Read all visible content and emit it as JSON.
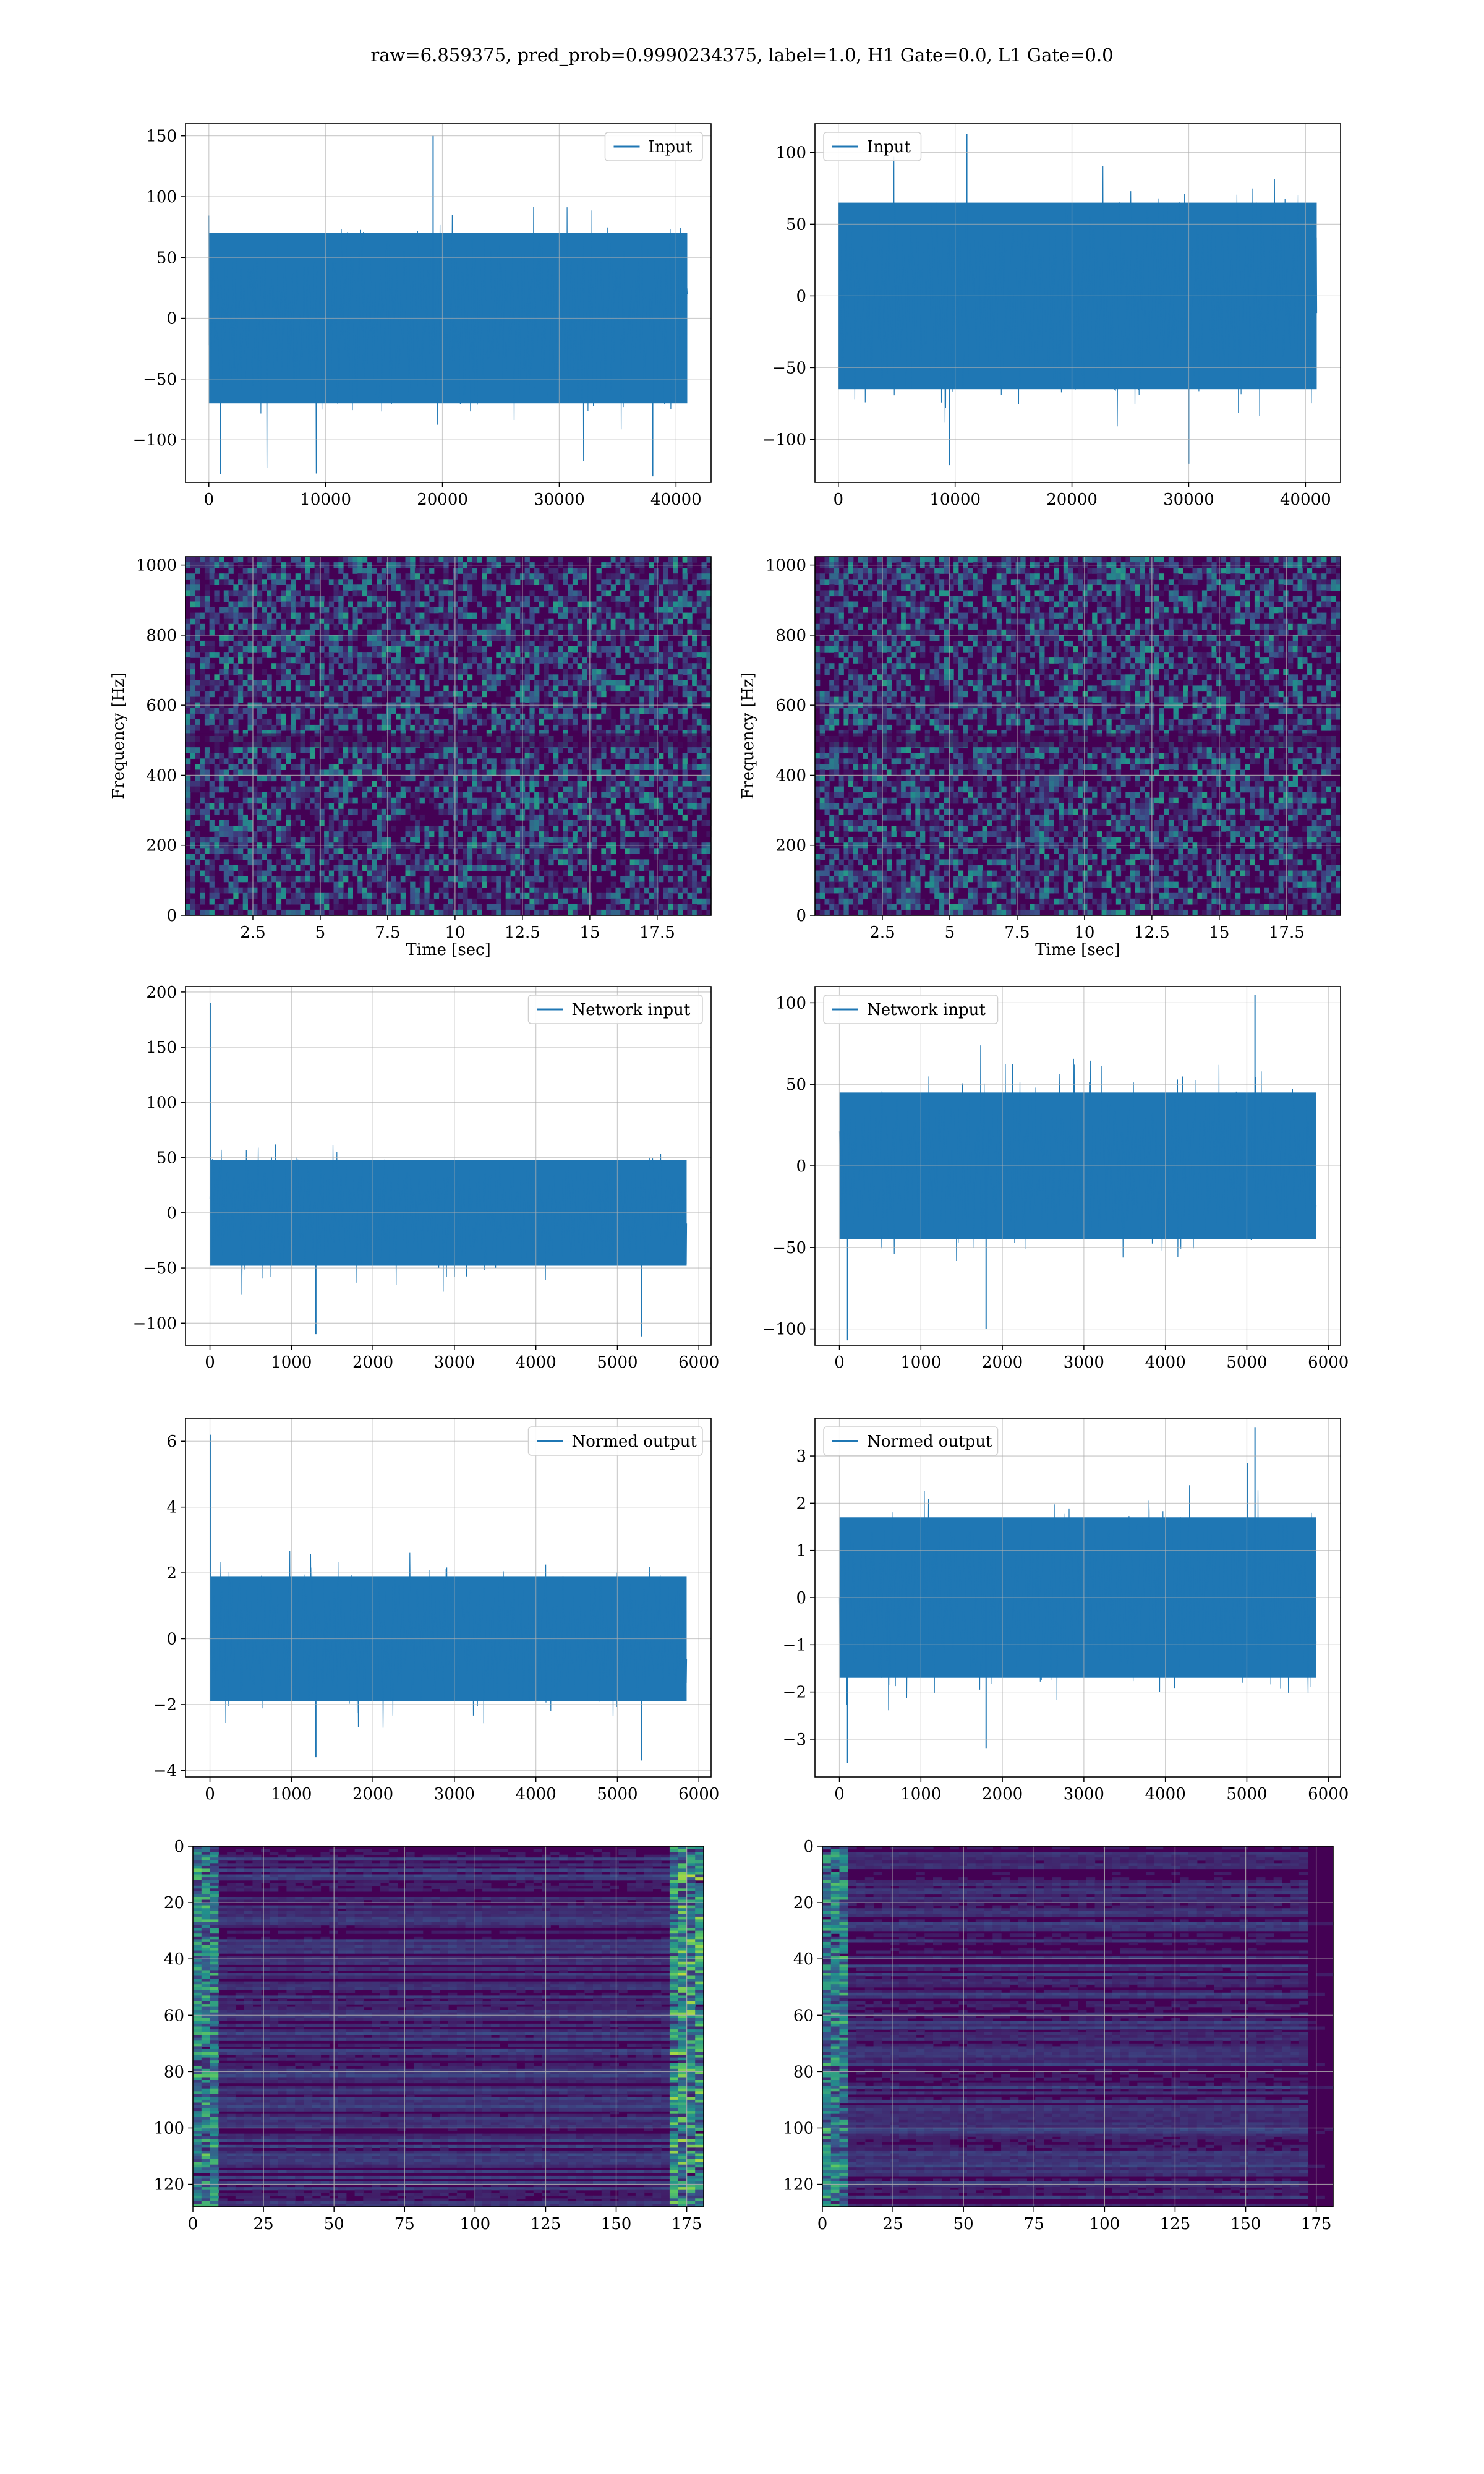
{
  "figure": {
    "title": "raw=6.859375, pred_prob=0.9990234375, label=1.0, H1 Gate=0.0, L1 Gate=0.0"
  },
  "colors": {
    "line": "#1f77b4",
    "grid": "#b0b0b0",
    "viridis_bg": "#440154"
  },
  "chart_data": [
    {
      "id": "h1-input",
      "type": "line",
      "legend": "top-right",
      "series": [
        {
          "name": "Input",
          "envelope": {
            "x_start": 0,
            "x_end": 40960,
            "lower": -70,
            "upper": 70
          },
          "peaks": [
            {
              "x": 19200,
              "y": 150
            },
            {
              "x": 1000,
              "y": -128
            },
            {
              "x": 38000,
              "y": -130
            }
          ]
        }
      ],
      "xlim": [
        -2000,
        43000
      ],
      "ylim": [
        -135,
        160
      ],
      "xticks": [
        0,
        10000,
        20000,
        30000,
        40000
      ],
      "yticks": [
        -100,
        -50,
        0,
        50,
        100,
        150
      ],
      "grid": true
    },
    {
      "id": "l1-input",
      "type": "line",
      "legend": "top-left",
      "series": [
        {
          "name": "Input",
          "envelope": {
            "x_start": 0,
            "x_end": 40960,
            "lower": -65,
            "upper": 65
          },
          "peaks": [
            {
              "x": 11000,
              "y": 113
            },
            {
              "x": 9500,
              "y": -118
            },
            {
              "x": 30000,
              "y": -117
            }
          ]
        }
      ],
      "xlim": [
        -2000,
        43000
      ],
      "ylim": [
        -130,
        120
      ],
      "xticks": [
        0,
        10000,
        20000,
        30000,
        40000
      ],
      "yticks": [
        -100,
        -50,
        0,
        50,
        100
      ],
      "grid": true
    },
    {
      "id": "h1-spectrogram",
      "type": "heatmap",
      "colormap": "viridis",
      "xlabel": "Time [sec]",
      "ylabel": "Frequency [Hz]",
      "xlim": [
        0,
        19.5
      ],
      "ylim": [
        0,
        1024
      ],
      "xticks": [
        2.5,
        5.0,
        7.5,
        10.0,
        12.5,
        15.0,
        17.5
      ],
      "yticks": [
        0,
        200,
        400,
        600,
        800,
        1000
      ],
      "grid": true
    },
    {
      "id": "l1-spectrogram",
      "type": "heatmap",
      "colormap": "viridis",
      "xlabel": "Time [sec]",
      "ylabel": "Frequency [Hz]",
      "xlim": [
        0,
        19.5
      ],
      "ylim": [
        0,
        1024
      ],
      "xticks": [
        2.5,
        5.0,
        7.5,
        10.0,
        12.5,
        15.0,
        17.5
      ],
      "yticks": [
        0,
        200,
        400,
        600,
        800,
        1000
      ],
      "grid": true
    },
    {
      "id": "h1-network-input",
      "type": "line",
      "legend": "top-right",
      "series": [
        {
          "name": "Network input",
          "envelope": {
            "x_start": 0,
            "x_end": 5850,
            "lower": -48,
            "upper": 48
          },
          "peaks": [
            {
              "x": 10,
              "y": 190
            },
            {
              "x": 1300,
              "y": -110
            },
            {
              "x": 5300,
              "y": -112
            }
          ]
        }
      ],
      "xlim": [
        -300,
        6150
      ],
      "ylim": [
        -120,
        205
      ],
      "xticks": [
        0,
        1000,
        2000,
        3000,
        4000,
        5000,
        6000
      ],
      "yticks": [
        -100,
        -50,
        0,
        50,
        100,
        150,
        200
      ],
      "grid": true
    },
    {
      "id": "l1-network-input",
      "type": "line",
      "legend": "top-left",
      "series": [
        {
          "name": "Network input",
          "envelope": {
            "x_start": 0,
            "x_end": 5850,
            "lower": -45,
            "upper": 45
          },
          "peaks": [
            {
              "x": 5100,
              "y": 105
            },
            {
              "x": 100,
              "y": -107
            },
            {
              "x": 1800,
              "y": -100
            }
          ]
        }
      ],
      "xlim": [
        -300,
        6150
      ],
      "ylim": [
        -110,
        110
      ],
      "xticks": [
        0,
        1000,
        2000,
        3000,
        4000,
        5000,
        6000
      ],
      "yticks": [
        -100,
        -50,
        0,
        50,
        100
      ],
      "grid": true
    },
    {
      "id": "h1-normed-output",
      "type": "line",
      "legend": "top-right",
      "series": [
        {
          "name": "Normed output",
          "envelope": {
            "x_start": 0,
            "x_end": 5850,
            "lower": -1.9,
            "upper": 1.9
          },
          "peaks": [
            {
              "x": 10,
              "y": 6.2
            },
            {
              "x": 1300,
              "y": -3.6
            },
            {
              "x": 5300,
              "y": -3.7
            }
          ]
        }
      ],
      "xlim": [
        -300,
        6150
      ],
      "ylim": [
        -4.2,
        6.7
      ],
      "xticks": [
        0,
        1000,
        2000,
        3000,
        4000,
        5000,
        6000
      ],
      "yticks": [
        -4,
        -2,
        0,
        2,
        4,
        6
      ],
      "grid": true
    },
    {
      "id": "l1-normed-output",
      "type": "line",
      "legend": "top-left",
      "series": [
        {
          "name": "Normed output",
          "envelope": {
            "x_start": 0,
            "x_end": 5850,
            "lower": -1.7,
            "upper": 1.7
          },
          "peaks": [
            {
              "x": 5100,
              "y": 3.6
            },
            {
              "x": 100,
              "y": -3.5
            },
            {
              "x": 1800,
              "y": -3.2
            }
          ]
        }
      ],
      "xlim": [
        -300,
        6150
      ],
      "ylim": [
        -3.8,
        3.8
      ],
      "xticks": [
        0,
        1000,
        2000,
        3000,
        4000,
        5000,
        6000
      ],
      "yticks": [
        -3,
        -2,
        -1,
        0,
        1,
        2,
        3
      ],
      "grid": true
    },
    {
      "id": "h1-feature-map",
      "type": "heatmap",
      "colormap": "viridis",
      "xlim": [
        0,
        181
      ],
      "ylim": [
        128,
        0
      ],
      "xticks": [
        0,
        25,
        50,
        75,
        100,
        125,
        150,
        175
      ],
      "yticks": [
        0,
        20,
        40,
        60,
        80,
        100,
        120
      ],
      "grid": true
    },
    {
      "id": "l1-feature-map",
      "type": "heatmap",
      "colormap": "viridis",
      "xlim": [
        0,
        181
      ],
      "ylim": [
        128,
        0
      ],
      "xticks": [
        0,
        25,
        50,
        75,
        100,
        125,
        150,
        175
      ],
      "yticks": [
        0,
        20,
        40,
        60,
        80,
        100,
        120
      ],
      "grid": true
    }
  ]
}
